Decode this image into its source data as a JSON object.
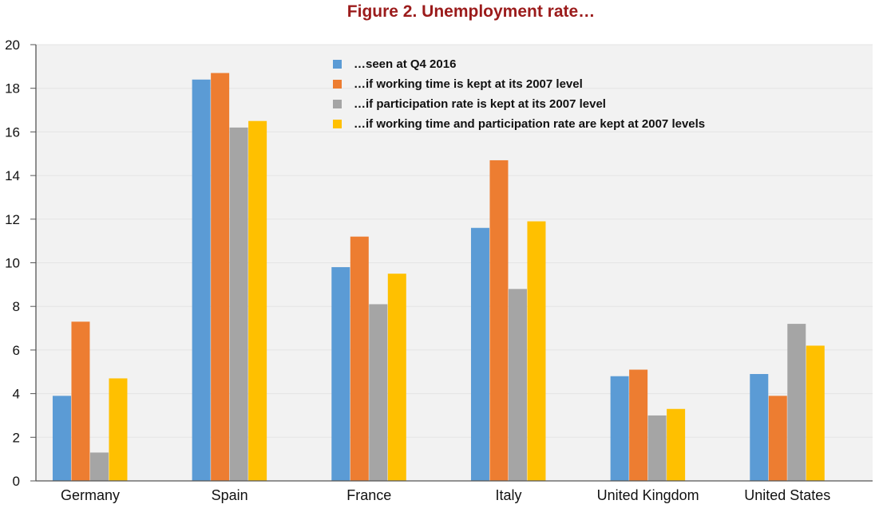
{
  "chart_data": {
    "type": "bar",
    "title": "Figure 2. Unemployment rate…",
    "xlabel": "",
    "ylabel": "",
    "ylim": [
      0,
      20
    ],
    "yticks": [
      0,
      2,
      4,
      6,
      8,
      10,
      12,
      14,
      16,
      18,
      20
    ],
    "grid": true,
    "legend_position": "top-center",
    "categories": [
      "Germany",
      "Spain",
      "France",
      "Italy",
      "United Kingdom",
      "United States"
    ],
    "series": [
      {
        "name": "…seen at Q4 2016",
        "color": "#5b9bd5",
        "values": [
          3.9,
          18.4,
          9.8,
          11.6,
          4.8,
          4.9
        ]
      },
      {
        "name": "…if working time is kept at its 2007 level",
        "color": "#ed7d31",
        "values": [
          7.3,
          18.7,
          11.2,
          14.7,
          5.1,
          3.9
        ]
      },
      {
        "name": "…if participation rate is kept at its 2007 level",
        "color": "#a5a5a5",
        "values": [
          1.3,
          16.2,
          8.1,
          8.8,
          3.0,
          7.2
        ]
      },
      {
        "name": "…if working time and participation rate are kept at 2007 levels",
        "color": "#ffc000",
        "values": [
          4.7,
          16.5,
          9.5,
          11.9,
          3.3,
          6.2
        ]
      }
    ],
    "colors": {
      "plot_background": "#f2f2f2",
      "gridline": "#e4e4e4",
      "axis": "#555555",
      "title": "#9b1b1b"
    }
  }
}
